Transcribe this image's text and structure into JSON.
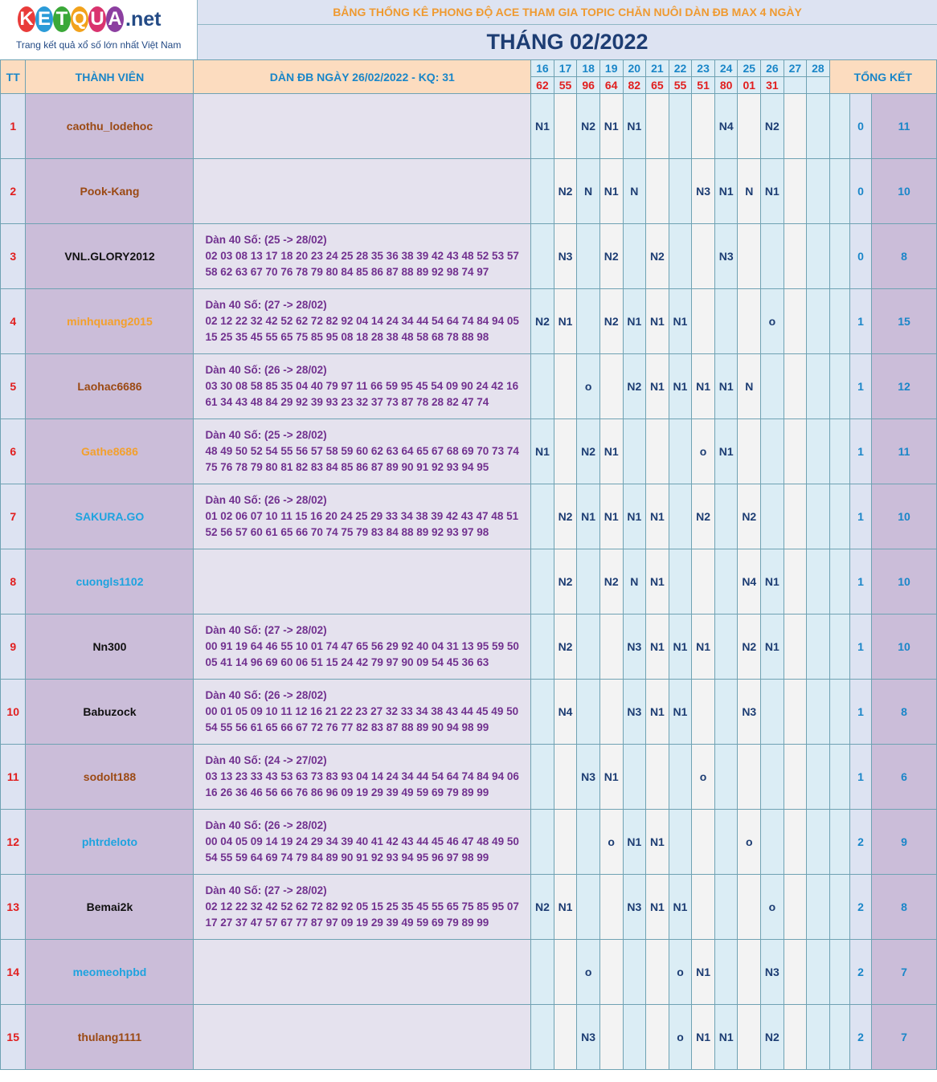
{
  "logo": {
    "letters": [
      "K",
      "E",
      "T",
      "Q",
      "U",
      "A"
    ],
    "letter_colors": [
      "#e93c3a",
      "#2b9bd8",
      "#3aa838",
      "#f2a21b",
      "#d9336e",
      "#8c3fa0"
    ],
    "suffix": ".net",
    "tagline": "Trang kết quả xổ số lớn nhất Việt Nam"
  },
  "title": "BẢNG THỐNG KÊ PHONG ĐỘ ACE THAM GIA TOPIC CHĂN NUÔI DÀN ĐB MAX 4 NGÀY",
  "month_title": "THÁNG 02/2022",
  "headers": {
    "tt": "TT",
    "member": "THÀNH VIÊN",
    "dan": "DÀN ĐB NGÀY 26/02/2022 - KQ: 31",
    "total": "TỔNG KẾT"
  },
  "days": [
    "16",
    "17",
    "18",
    "19",
    "20",
    "21",
    "22",
    "23",
    "24",
    "25",
    "26",
    "27",
    "28"
  ],
  "results": [
    "62",
    "55",
    "96",
    "64",
    "82",
    "65",
    "55",
    "51",
    "80",
    "01",
    "31",
    "",
    ""
  ],
  "rows": [
    {
      "tt": "1",
      "name": "caothu_lodehoc",
      "name_color": "#9b4a14",
      "dan_title": "",
      "dan_line1": "",
      "dan_line2": "",
      "marks": [
        "N1",
        "",
        "N2",
        "N1",
        "N1",
        "",
        "",
        "",
        "N4",
        "",
        "N2",
        "",
        ""
      ],
      "s1": "0",
      "s2": "11"
    },
    {
      "tt": "2",
      "name": "Pook-Kang",
      "name_color": "#9b4a14",
      "dan_title": "",
      "dan_line1": "",
      "dan_line2": "",
      "marks": [
        "",
        "N2",
        "N",
        "N1",
        "N",
        "",
        "",
        "N3",
        "N1",
        "N",
        "N1",
        "",
        ""
      ],
      "s1": "0",
      "s2": "10"
    },
    {
      "tt": "3",
      "name": "VNL.GLORY2012",
      "name_color": "#111111",
      "dan_title": "Dàn 40 Số: (25 -> 28/02)",
      "dan_line1": "02 03 08 13 17 18 20 23 24 25 28 35 36 38 39 42 43 48 52 53 57",
      "dan_line2": "58 62 63 67 70 76 78 79 80 84 85 86 87 88 89 92 98 74 97",
      "marks": [
        "",
        "N3",
        "",
        "N2",
        "",
        "N2",
        "",
        "",
        "N3",
        "",
        "",
        "",
        ""
      ],
      "s1": "0",
      "s2": "8"
    },
    {
      "tt": "4",
      "name": "minhquang2015",
      "name_color": "#f3a02c",
      "dan_title": "Dàn 40 Số: (27 -> 28/02)",
      "dan_line1": "02 12 22 32 42 52 62 72 82 92 04 14 24 34 44 54 64 74 84 94 05",
      "dan_line2": "15 25 35 45 55 65 75 85 95 08 18 28 38 48 58 68 78 88 98",
      "marks": [
        "N2",
        "N1",
        "",
        "N2",
        "N1",
        "N1",
        "N1",
        "",
        "",
        "",
        "o",
        "",
        ""
      ],
      "s1": "1",
      "s2": "15"
    },
    {
      "tt": "5",
      "name": "Laohac6686",
      "name_color": "#9b4a14",
      "dan_title": "Dàn 40 Số: (26 -> 28/02)",
      "dan_line1": "03 30 08 58 85 35 04 40 79 97 11 66 59 95 45 54 09 90 24 42 16",
      "dan_line2": "61 34 43 48 84 29 92 39 93 23 32 37 73 87 78 28 82 47 74",
      "marks": [
        "",
        "",
        "o",
        "",
        "N2",
        "N1",
        "N1",
        "N1",
        "N1",
        "N",
        "",
        "",
        ""
      ],
      "s1": "1",
      "s2": "12"
    },
    {
      "tt": "6",
      "name": "Gathe8686",
      "name_color": "#f3a02c",
      "dan_title": "Dàn 40 Số: (25 -> 28/02)",
      "dan_line1": "48 49 50 52 54 55 56 57 58 59 60 62 63 64 65 67 68 69 70 73 74",
      "dan_line2": "75 76 78 79 80 81 82 83 84 85 86 87 89 90 91 92 93 94 95",
      "marks": [
        "N1",
        "",
        "N2",
        "N1",
        "",
        "",
        "",
        "o",
        "N1",
        "",
        "",
        "",
        ""
      ],
      "s1": "1",
      "s2": "11"
    },
    {
      "tt": "7",
      "name": "SAKURA.GO",
      "name_color": "#1ea3df",
      "dan_title": "Dàn 40 Số: (26 -> 28/02)",
      "dan_line1": "01 02 06 07 10 11 15 16 20 24 25 29 33 34 38 39 42 43 47 48 51",
      "dan_line2": "52 56 57 60 61 65 66 70 74 75 79 83 84 88 89 92 93 97 98",
      "marks": [
        "",
        "N2",
        "N1",
        "N1",
        "N1",
        "N1",
        "",
        "N2",
        "",
        "N2",
        "",
        "",
        ""
      ],
      "s1": "1",
      "s2": "10"
    },
    {
      "tt": "8",
      "name": "cuongls1102",
      "name_color": "#1ea3df",
      "dan_title": "",
      "dan_line1": "",
      "dan_line2": "",
      "marks": [
        "",
        "N2",
        "",
        "N2",
        "N",
        "N1",
        "",
        "",
        "",
        "N4",
        "N1",
        "",
        ""
      ],
      "s1": "1",
      "s2": "10"
    },
    {
      "tt": "9",
      "name": "Nn300",
      "name_color": "#111111",
      "dan_title": "Dàn 40 Số: (27 -> 28/02)",
      "dan_line1": "00 91 19 64 46 55 10 01 74 47 65 56 29 92 40 04 31 13 95 59 50",
      "dan_line2": "05 41 14 96 69 60 06 51 15 24 42 79 97 90 09 54 45 36 63",
      "marks": [
        "",
        "N2",
        "",
        "",
        "N3",
        "N1",
        "N1",
        "N1",
        "",
        "N2",
        "N1",
        "",
        ""
      ],
      "s1": "1",
      "s2": "10"
    },
    {
      "tt": "10",
      "name": "Babuzock",
      "name_color": "#111111",
      "dan_title": "Dàn 40 Số: (26 -> 28/02)",
      "dan_line1": "00 01 05 09 10 11 12 16 21 22 23 27 32 33 34 38 43 44 45 49 50",
      "dan_line2": "54 55 56 61 65 66 67 72 76 77 82 83 87 88 89 90 94 98 99",
      "marks": [
        "",
        "N4",
        "",
        "",
        "N3",
        "N1",
        "N1",
        "",
        "",
        "N3",
        "",
        "",
        ""
      ],
      "s1": "1",
      "s2": "8"
    },
    {
      "tt": "11",
      "name": "sodolt188",
      "name_color": "#9b4a14",
      "dan_title": "Dàn 40 Số: (24 -> 27/02)",
      "dan_line1": "03 13 23 33 43 53 63 73 83 93 04 14 24 34 44 54 64 74 84 94 06",
      "dan_line2": "16 26 36 46 56 66 76 86 96 09 19 29 39 49 59 69 79 89 99",
      "marks": [
        "",
        "",
        "N3",
        "N1",
        "",
        "",
        "",
        "o",
        "",
        "",
        "",
        "",
        ""
      ],
      "s1": "1",
      "s2": "6"
    },
    {
      "tt": "12",
      "name": "phtrdeloto",
      "name_color": "#1ea3df",
      "dan_title": "Dàn 40 Số: (26 -> 28/02)",
      "dan_line1": "00 04 05 09 14 19 24 29 34 39 40 41 42 43 44 45 46 47 48 49 50",
      "dan_line2": "54 55 59 64 69 74 79 84 89 90 91 92 93 94 95 96 97 98 99",
      "marks": [
        "",
        "",
        "",
        "o",
        "N1",
        "N1",
        "",
        "",
        "",
        "o",
        "",
        "",
        ""
      ],
      "s1": "2",
      "s2": "9"
    },
    {
      "tt": "13",
      "name": "Bemai2k",
      "name_color": "#111111",
      "dan_title": "Dàn 40 Số: (27 -> 28/02)",
      "dan_line1": "02 12 22 32 42 52 62 72 82 92 05 15 25 35 45 55 65 75 85 95 07",
      "dan_line2": "17 27 37 47 57 67 77 87 97 09 19 29 39 49 59 69 79 89 99",
      "marks": [
        "N2",
        "N1",
        "",
        "",
        "N3",
        "N1",
        "N1",
        "",
        "",
        "",
        "o",
        "",
        ""
      ],
      "s1": "2",
      "s2": "8"
    },
    {
      "tt": "14",
      "name": "meomeohpbd",
      "name_color": "#1ea3df",
      "dan_title": "",
      "dan_line1": "",
      "dan_line2": "",
      "marks": [
        "",
        "",
        "o",
        "",
        "",
        "",
        "o",
        "N1",
        "",
        "",
        "N3",
        "",
        ""
      ],
      "s1": "2",
      "s2": "7"
    },
    {
      "tt": "15",
      "name": "thulang1111",
      "name_color": "#9b4a14",
      "dan_title": "",
      "dan_line1": "",
      "dan_line2": "",
      "marks": [
        "",
        "",
        "N3",
        "",
        "",
        "",
        "o",
        "N1",
        "N1",
        "",
        "N2",
        "",
        ""
      ],
      "s1": "2",
      "s2": "7"
    }
  ]
}
